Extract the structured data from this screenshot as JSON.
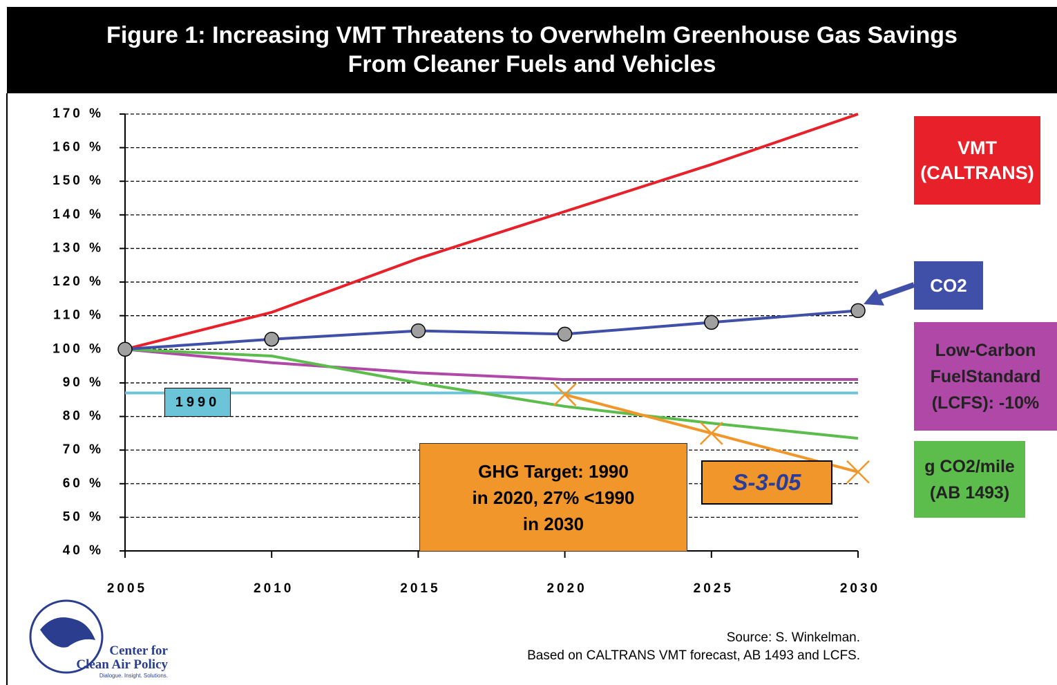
{
  "chart_data": {
    "type": "line",
    "title": "Figure 1: Increasing VMT Threatens to Overwhelm Greenhouse Gas Savings",
    "subtitle": "From Cleaner Fuels and Vehicles",
    "x": [
      2005,
      2010,
      2015,
      2020,
      2025,
      2030
    ],
    "xlim": [
      2005,
      2030
    ],
    "xticks": [
      2005,
      2010,
      2015,
      2020,
      2025,
      2030
    ],
    "ylim": [
      40,
      170
    ],
    "yticks": [
      {
        "value": 40,
        "label": "40 %"
      },
      {
        "value": 50,
        "label": "50 %"
      },
      {
        "value": 60,
        "label": "60 %"
      },
      {
        "value": 70,
        "label": "70 %"
      },
      {
        "value": 80,
        "label": "80 %"
      },
      {
        "value": 90,
        "label": "90 %"
      },
      {
        "value": 100,
        "label": "100 %"
      },
      {
        "value": 110,
        "label": "110 %"
      },
      {
        "value": 120,
        "label": "120 %"
      },
      {
        "value": 130,
        "label": "130 %"
      },
      {
        "value": 140,
        "label": "140 %"
      },
      {
        "value": 150,
        "label": "150 %"
      },
      {
        "value": 160,
        "label": "160 %"
      },
      {
        "value": 170,
        "label": "170 %"
      }
    ],
    "grid": true,
    "series": [
      {
        "name": "VMT (CALTRANS)",
        "color": "#e8202a",
        "values": [
          100,
          111,
          127,
          141,
          155,
          170
        ]
      },
      {
        "name": "CO2",
        "color": "#4050a8",
        "marker": "circle",
        "values": [
          100,
          103,
          105.5,
          104.5,
          108,
          111.5
        ]
      },
      {
        "name": "Low-Carbon FuelStandard (LCFS): -10%",
        "color": "#b048a8",
        "values": [
          100,
          96,
          93,
          91,
          91,
          91
        ]
      },
      {
        "name": "g CO2/mile (AB 1493)",
        "color": "#5cbc4c",
        "values": [
          100,
          98,
          90,
          83,
          78,
          73.5
        ]
      },
      {
        "name": "S-3-05",
        "color": "#f0962a",
        "marker": "x",
        "values": [
          null,
          null,
          null,
          86.5,
          75,
          63.5
        ]
      }
    ],
    "reference_line": {
      "value": 87,
      "label": "1990",
      "color": "#6cc4d8"
    },
    "annotations": [
      "GHG Target: 1990 in 2020, 27% <1990 in 2030"
    ],
    "source": [
      "Source: S. Winkelman.",
      "Based on CALTRANS VMT forecast, AB 1493 and LCFS."
    ],
    "logo": [
      "Center for",
      "Clean Air Policy",
      "Dialogue. Insight. Solutions."
    ]
  }
}
